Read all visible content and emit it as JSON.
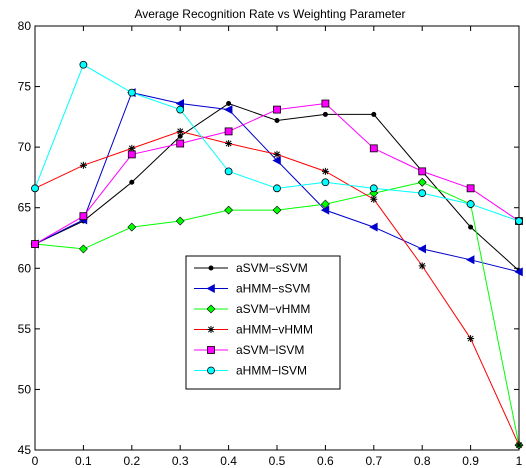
{
  "chart_data": {
    "type": "line",
    "title": "Average Recognition Rate vs Weighting Parameter",
    "xlabel": "",
    "ylabel": "",
    "x": [
      0,
      0.1,
      0.2,
      0.3,
      0.4,
      0.5,
      0.6,
      0.7,
      0.8,
      0.9,
      1
    ],
    "xticks": [
      "0",
      "0.1",
      "0.2",
      "0.3",
      "0.4",
      "0.5",
      "0.6",
      "0.7",
      "0.8",
      "0.9",
      "1"
    ],
    "yticks": [
      "45",
      "50",
      "55",
      "60",
      "65",
      "70",
      "75",
      "80"
    ],
    "xlim": [
      0,
      1
    ],
    "ylim": [
      45,
      80
    ],
    "grid": false,
    "legend_position": "center",
    "series": [
      {
        "name": "aSVM−sSVM",
        "color": "#000000",
        "marker": "dot",
        "values": [
          62.0,
          63.9,
          67.1,
          70.9,
          73.6,
          72.2,
          72.7,
          72.7,
          68.0,
          63.4,
          59.8
        ]
      },
      {
        "name": "aHMM−sSVM",
        "color": "#0000cc",
        "marker": "triangle-left",
        "values": [
          62.0,
          64.0,
          74.5,
          73.6,
          73.1,
          68.9,
          64.8,
          63.4,
          61.6,
          60.7,
          59.7
        ]
      },
      {
        "name": "aSVM−vHMM",
        "color": "#00ff00",
        "marker": "diamond",
        "values": [
          62.0,
          61.6,
          63.4,
          63.9,
          64.8,
          64.8,
          65.3,
          66.2,
          67.1,
          65.3,
          45.4
        ]
      },
      {
        "name": "aHMM−vHMM",
        "color": "#ff0000",
        "marker": "star",
        "values": [
          66.6,
          68.5,
          69.9,
          71.3,
          70.3,
          69.4,
          68.0,
          65.7,
          60.2,
          54.2,
          45.4
        ]
      },
      {
        "name": "aSVM−lSVM",
        "color": "#ff00ff",
        "marker": "square",
        "values": [
          62.0,
          64.3,
          69.4,
          70.3,
          71.3,
          73.1,
          73.6,
          69.9,
          68.0,
          66.6,
          63.9
        ]
      },
      {
        "name": "aHMM−lSVM",
        "color": "#00ffff",
        "marker": "circle",
        "values": [
          66.6,
          76.8,
          74.5,
          73.1,
          68.0,
          66.6,
          67.1,
          66.6,
          66.2,
          65.3,
          63.9
        ]
      }
    ]
  }
}
